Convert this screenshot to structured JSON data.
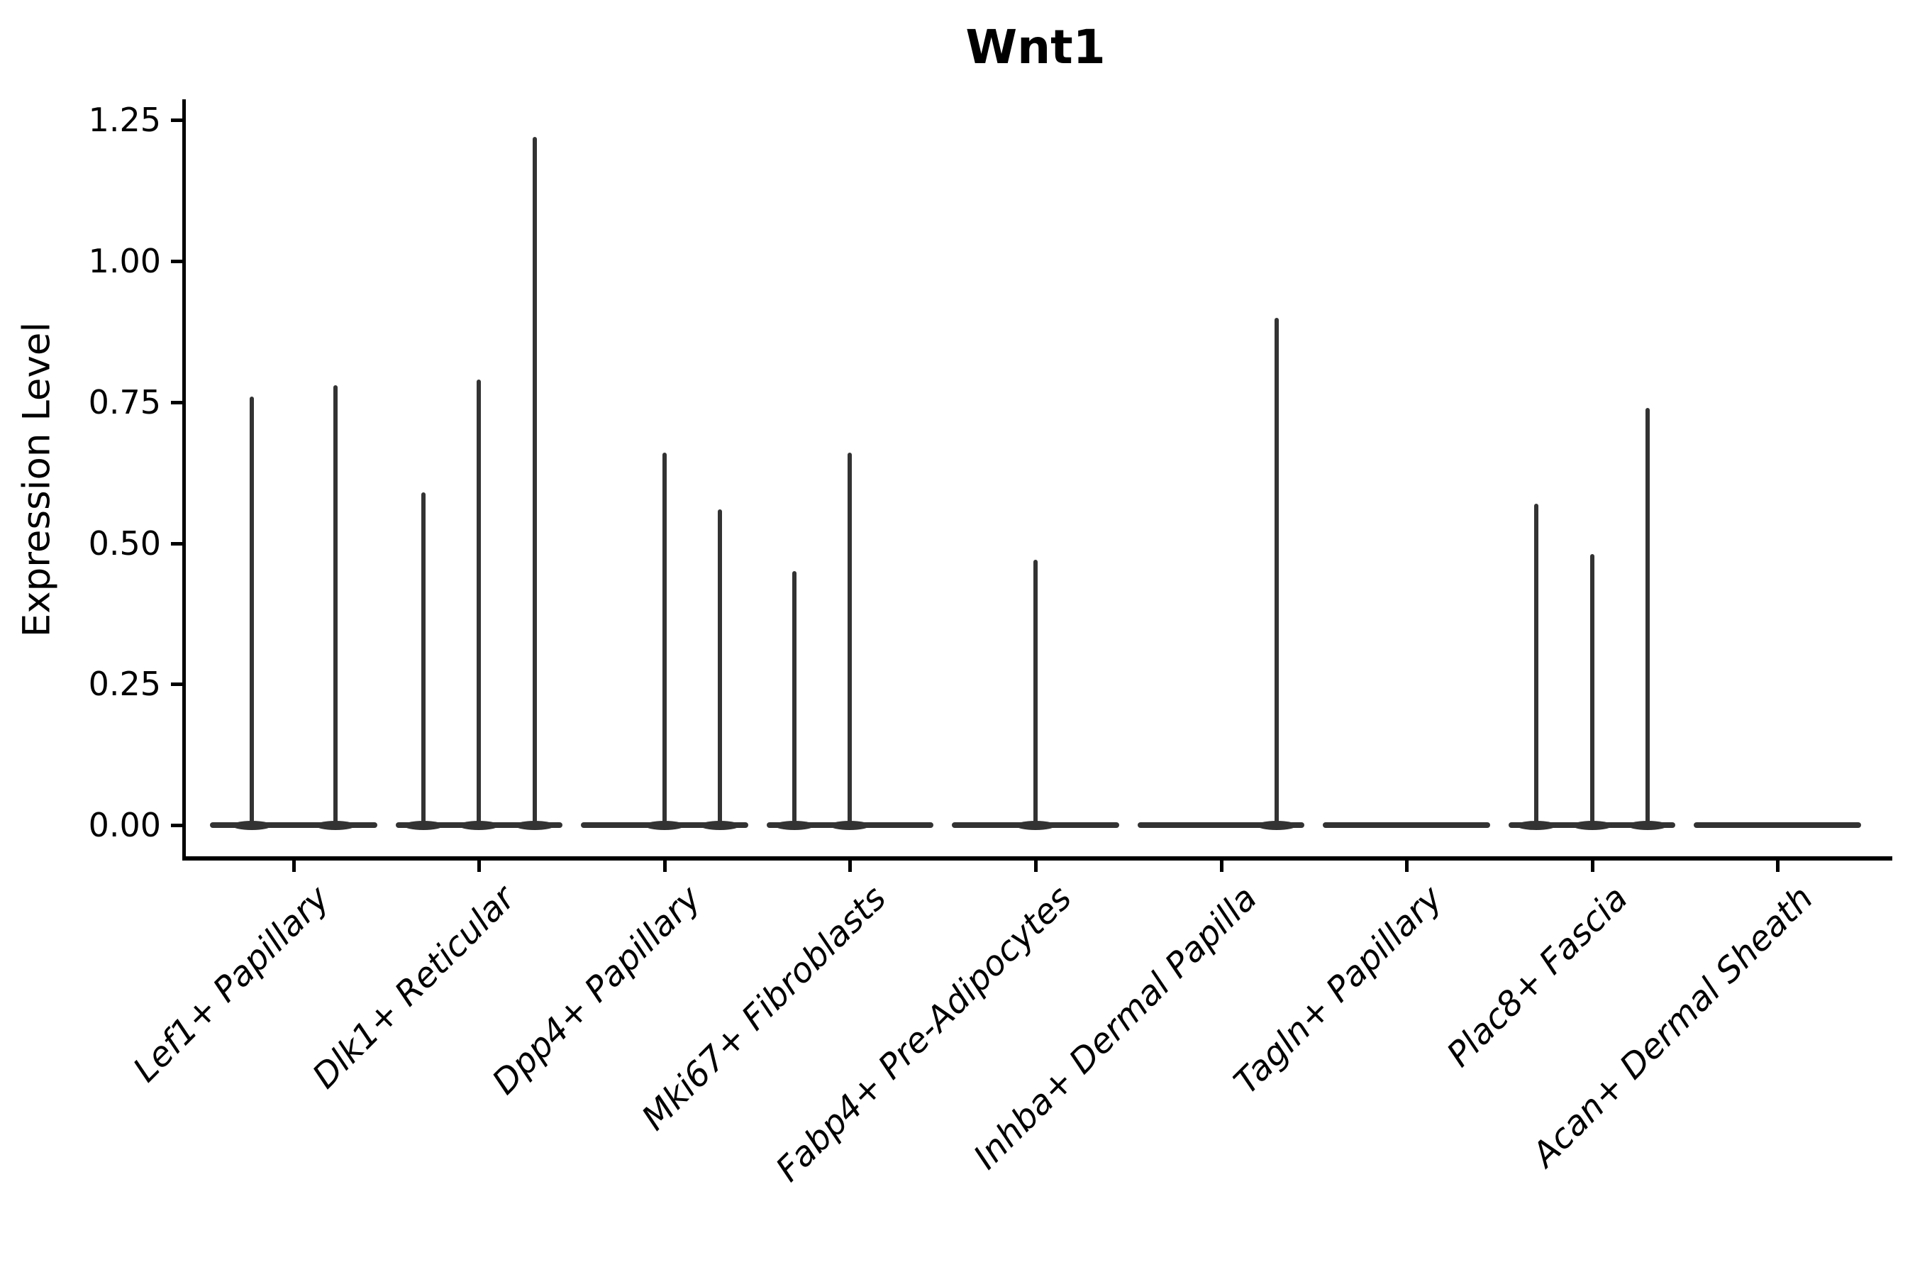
{
  "colors": {
    "ink": "#000000",
    "violin_stroke": "#333333",
    "background": "#ffffff"
  },
  "chart_data": {
    "type": "violin",
    "title": "Wnt1",
    "ylabel": "Expression Level",
    "xlabel": "",
    "ylim": [
      -0.06,
      1.28
    ],
    "yticks": [
      0.0,
      0.25,
      0.5,
      0.75,
      1.0,
      1.25
    ],
    "ytick_labels": [
      "0.00",
      "0.25",
      "0.50",
      "0.75",
      "1.00",
      "1.25"
    ],
    "legend": "none",
    "grid": false,
    "description": "Sparse single-cell expression violin plot: each category shows a flattened violin at 0 with thin needle spikes rising to the few nonzero expression values; categories contain up to 3 tightly packed sub-violins.",
    "category_band_width": 0.9,
    "slot_offsets_2": [
      -0.225,
      0.225
    ],
    "slot_offsets_3": [
      -0.3,
      0.0,
      0.3
    ],
    "groups": [
      {
        "label": "Lef1+ Papillary",
        "slots": 2,
        "spikes": [
          {
            "slot": 0,
            "value": 0.76
          },
          {
            "slot": 1,
            "value": 0.78
          }
        ]
      },
      {
        "label": "Dlk1+ Reticular",
        "slots": 3,
        "spikes": [
          {
            "slot": 0,
            "value": 0.59
          },
          {
            "slot": 1,
            "value": 0.79
          },
          {
            "slot": 2,
            "value": 1.22
          }
        ]
      },
      {
        "label": "Dpp4+ Papillary",
        "slots": 3,
        "spikes": [
          {
            "slot": 1,
            "value": 0.66
          },
          {
            "slot": 2,
            "value": 0.56
          }
        ]
      },
      {
        "label": "Mki67+ Fibroblasts",
        "slots": 3,
        "spikes": [
          {
            "slot": 0,
            "value": 0.45
          },
          {
            "slot": 1,
            "value": 0.66
          }
        ]
      },
      {
        "label": "Fabp4+ Pre-Adipocytes",
        "slots": 3,
        "spikes": [
          {
            "slot": 1,
            "value": 0.47
          }
        ]
      },
      {
        "label": "Inhba+ Dermal Papilla",
        "slots": 3,
        "spikes": [
          {
            "slot": 2,
            "value": 0.9
          }
        ]
      },
      {
        "label": "Tagln+ Papillary",
        "slots": 3,
        "spikes": []
      },
      {
        "label": "Plac8+ Fascia",
        "slots": 3,
        "spikes": [
          {
            "slot": 0,
            "value": 0.57
          },
          {
            "slot": 1,
            "value": 0.48
          },
          {
            "slot": 2,
            "value": 0.74
          }
        ]
      },
      {
        "label": "Acan+ Dermal Sheath",
        "slots": 3,
        "spikes": []
      }
    ]
  }
}
